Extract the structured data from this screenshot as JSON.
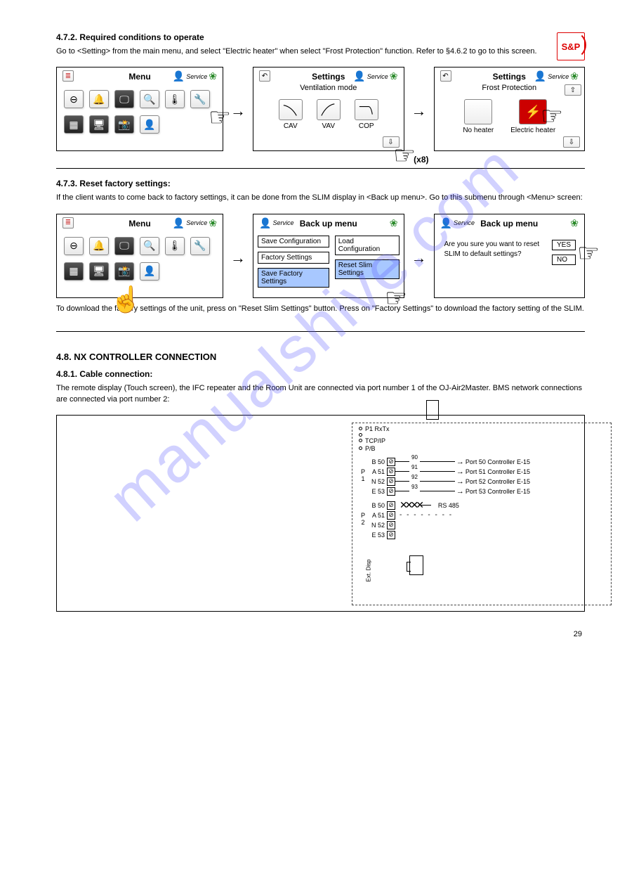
{
  "logo": {
    "text": "S&P"
  },
  "sections": {
    "s1": {
      "heading": "4.7.2. Required conditions to operate",
      "body": "Go to <Setting> from the main menu, and select \"Electric heater\" when select \"Frost Protection\" function. Refer to §4.6.2 to go to this screen."
    },
    "s2": {
      "heading": "4.7.3. Reset factory settings:",
      "body": "If the client wants to come back to factory settings, it can be done from the SLIM display in <Back up menu>. Go to this submenu through <Menu> screen:",
      "body2": "To download the factory settings of the unit, press on \"Reset Slim Settings\" button. Press on \"Factory Settings\" to download the factory setting of the SLIM."
    },
    "s3": {
      "heading": "4.8. NX CONTROLLER CONNECTION",
      "sub": "4.8.1. Cable connection:",
      "body": "The remote display (Touch screen), the IFC repeater and the Room Unit are connected via port number 1 of the OJ-Air2Master. BMS network connections are connected via port number 2:"
    }
  },
  "panels": {
    "menu": {
      "title": "Menu",
      "service": "Service",
      "icons": [
        "⊖",
        "🔔",
        "🖵",
        "🔍",
        "🌡",
        "🔧",
        "📅",
        "🖥",
        "📸",
        "👤"
      ]
    },
    "settings_vent": {
      "title": "Settings",
      "sub": "Ventilation mode",
      "service": "Service",
      "options": [
        {
          "label": "CAV"
        },
        {
          "label": "VAV"
        },
        {
          "label": "COP"
        }
      ],
      "x8": "(x8)"
    },
    "settings_frost": {
      "title": "Settings",
      "sub": "Frost Protection",
      "service": "Service",
      "options": [
        {
          "label": "No heater",
          "selected": false
        },
        {
          "label": "Electric heater",
          "selected": true
        }
      ]
    },
    "backup": {
      "title": "Back up menu",
      "service": "Service",
      "buttons_left": [
        "Save Configuration",
        "Factory Settings",
        "Save Factory Settings"
      ],
      "buttons_right": [
        "Load Configuration",
        "Reset Slim Settings"
      ]
    },
    "confirm": {
      "title": "Back up menu",
      "service": "Service",
      "text": "Are you sure you want to reset SLIM to default settings?",
      "yes": "YES",
      "no": "NO"
    }
  },
  "wiring": {
    "leds": [
      "P1 RxTx",
      "",
      "TCP/IP",
      "P/B"
    ],
    "group1_label": "P 1",
    "group2_label": "P 2",
    "terms1": [
      {
        "pin": "B 50",
        "wire": "90",
        "text": "Port 50 Controller E-15"
      },
      {
        "pin": "A 51",
        "wire": "91",
        "text": "Port 51 Controller E-15"
      },
      {
        "pin": "N 52",
        "wire": "92",
        "text": "Port 52 Controller E-15"
      },
      {
        "pin": "E 53",
        "wire": "93",
        "text": "Port 53 Controller E-15"
      }
    ],
    "terms2": [
      {
        "pin": "B 50"
      },
      {
        "pin": "A 51"
      },
      {
        "pin": "N 52"
      },
      {
        "pin": "E 53"
      }
    ],
    "bus": "RS 485",
    "ext": "Ext. Disp"
  },
  "page": "29"
}
